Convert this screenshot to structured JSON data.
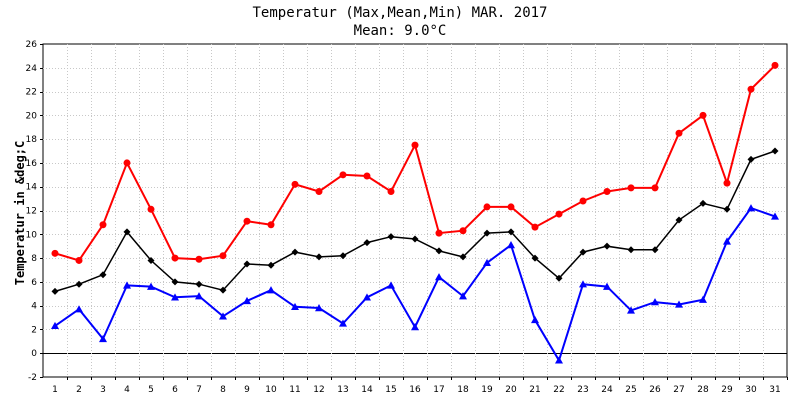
{
  "chart_data": {
    "type": "line",
    "title": "Temperatur (Max,Mean,Min) MAR. 2017",
    "subtitle": "Mean: 9.0°C",
    "xlabel": "",
    "ylabel": "Temperatur in &deg;C",
    "ylim": [
      -2,
      26
    ],
    "yticks": [
      -2,
      0,
      2,
      4,
      6,
      8,
      10,
      12,
      14,
      16,
      18,
      20,
      22,
      24,
      26
    ],
    "categories": [
      "1",
      "2",
      "3",
      "4",
      "5",
      "6",
      "7",
      "8",
      "9",
      "10",
      "11",
      "12",
      "13",
      "14",
      "15",
      "16",
      "17",
      "18",
      "19",
      "20",
      "21",
      "22",
      "23",
      "24",
      "25",
      "26",
      "27",
      "28",
      "29",
      "30",
      "31"
    ],
    "grid": true,
    "series": [
      {
        "name": "",
        "color": "#ff0000",
        "marker": "circle",
        "values": [
          8.4,
          7.8,
          10.8,
          16.0,
          12.1,
          8.0,
          7.9,
          8.2,
          11.1,
          10.8,
          14.2,
          13.6,
          15.0,
          14.9,
          13.6,
          17.5,
          10.1,
          10.3,
          12.3,
          12.3,
          10.6,
          11.7,
          12.8,
          13.6,
          13.9,
          13.9,
          18.5,
          20.0,
          14.3,
          22.2,
          24.2
        ]
      },
      {
        "name": "",
        "color": "#000000",
        "marker": "diamond",
        "values": [
          5.2,
          5.8,
          6.6,
          10.2,
          7.8,
          6.0,
          5.8,
          5.3,
          7.5,
          7.4,
          8.5,
          8.1,
          8.2,
          9.3,
          9.8,
          9.6,
          8.6,
          8.1,
          10.1,
          10.2,
          8.0,
          6.3,
          8.5,
          9.0,
          8.7,
          8.7,
          11.2,
          12.6,
          12.1,
          16.3,
          17.0
        ]
      },
      {
        "name": "",
        "color": "#0000ff",
        "marker": "triangle",
        "values": [
          2.3,
          3.7,
          1.2,
          5.7,
          5.6,
          4.7,
          4.8,
          3.1,
          4.4,
          5.3,
          3.9,
          3.8,
          2.5,
          4.7,
          5.7,
          2.2,
          6.4,
          4.8,
          7.6,
          9.1,
          2.8,
          -0.6,
          5.8,
          5.6,
          3.6,
          4.3,
          4.1,
          4.5,
          9.4,
          12.2,
          11.5
        ]
      }
    ]
  }
}
